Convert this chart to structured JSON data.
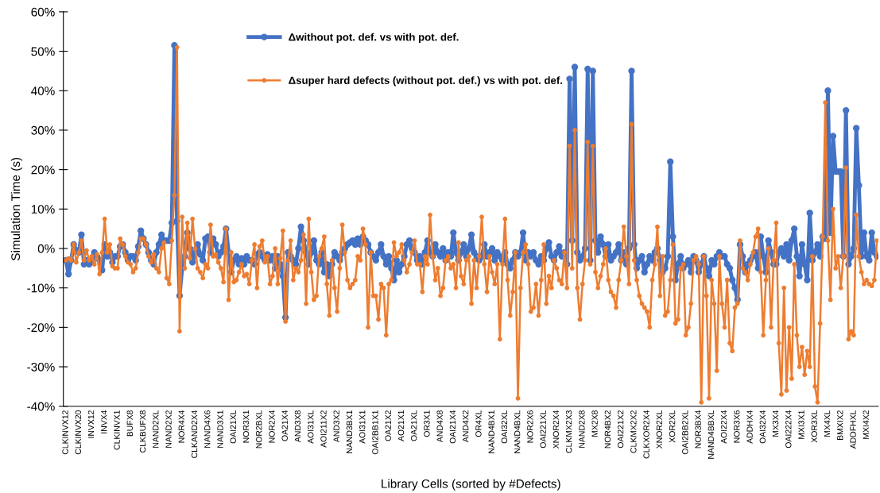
{
  "chart_data": {
    "type": "line",
    "xlabel": "Library Cells (sorted by #Defects)",
    "ylabel": "Simulation Time (s)",
    "categories": [
      "CLKINVX12",
      null,
      null,
      null,
      null,
      "CLKINVX20",
      null,
      null,
      null,
      null,
      "INVX12",
      null,
      null,
      null,
      null,
      "INVX4",
      null,
      null,
      null,
      null,
      "CLKINVX1",
      null,
      null,
      null,
      null,
      "BUFX8",
      null,
      null,
      null,
      null,
      "CLKBUFX8",
      null,
      null,
      null,
      null,
      "NAND2XL",
      null,
      null,
      null,
      null,
      "NAND2X2",
      null,
      null,
      null,
      null,
      "NOR4X4",
      null,
      null,
      null,
      null,
      "CLKAND2X4",
      null,
      null,
      null,
      null,
      "NAND4X6",
      null,
      null,
      null,
      null,
      "NAND3X1",
      null,
      null,
      null,
      null,
      "OAI21XL",
      null,
      null,
      null,
      null,
      "NOR3X1",
      null,
      null,
      null,
      null,
      "NOR2BXL",
      null,
      null,
      null,
      null,
      "NOR2X4",
      null,
      null,
      null,
      null,
      "OA21X4",
      null,
      null,
      null,
      null,
      "AND3X8",
      null,
      null,
      null,
      null,
      "AOI31XL",
      null,
      null,
      null,
      null,
      "AOI211X2",
      null,
      null,
      null,
      null,
      "AND3X2",
      null,
      null,
      null,
      null,
      "NAND3BX1",
      null,
      null,
      null,
      null,
      "AOI31X1",
      null,
      null,
      null,
      null,
      "OAI2BB1X1",
      null,
      null,
      null,
      null,
      "OA21X2",
      null,
      null,
      null,
      null,
      "AO21X1",
      null,
      null,
      null,
      null,
      "OA21XL",
      null,
      null,
      null,
      null,
      "OR3X1",
      null,
      null,
      null,
      null,
      "AND4X8",
      null,
      null,
      null,
      null,
      "OAI21X4",
      null,
      null,
      null,
      null,
      "AND4X2",
      null,
      null,
      null,
      null,
      "OR4XL",
      null,
      null,
      null,
      null,
      "NAND4BX1",
      null,
      null,
      null,
      null,
      "OAI32XL",
      null,
      null,
      null,
      null,
      "NAND4BXL",
      null,
      null,
      null,
      null,
      "NOR2X6",
      null,
      null,
      null,
      null,
      "OAI221XL",
      null,
      null,
      null,
      null,
      "XNOR2X4",
      null,
      null,
      null,
      null,
      "CLKMX2X3",
      null,
      null,
      null,
      null,
      "NAND2X8",
      null,
      null,
      null,
      null,
      "MX2X8",
      null,
      null,
      null,
      null,
      "NOR4BX2",
      null,
      null,
      null,
      null,
      "OAI221X2",
      null,
      null,
      null,
      null,
      "CLKMX2X2",
      null,
      null,
      null,
      null,
      "CLKXOR2X4",
      null,
      null,
      null,
      null,
      "XNOR2XL",
      null,
      null,
      null,
      null,
      "XOR2XL",
      null,
      null,
      null,
      null,
      "OAI2BB2XL",
      null,
      null,
      null,
      null,
      "NOR3BX4",
      null,
      null,
      null,
      null,
      "NAND4BBXL",
      null,
      null,
      null,
      null,
      "AOI22X4",
      null,
      null,
      null,
      null,
      "NOR3X6",
      null,
      null,
      null,
      null,
      "ADDHX4",
      null,
      null,
      null,
      null,
      "OAI32X4",
      null,
      null,
      null,
      null,
      "MX3X4",
      null,
      null,
      null,
      null,
      "OAI222X4",
      null,
      null,
      null,
      null,
      "MXI3X1",
      null,
      null,
      null,
      null,
      "XOR3XL",
      null,
      null,
      null,
      null,
      "MX4XL",
      null,
      null,
      null,
      null,
      "BMXIX2",
      null,
      null,
      null,
      null,
      "ADDFHXL",
      null,
      null,
      null,
      null,
      "MXI4X2",
      null,
      null,
      null,
      null
    ],
    "series": [
      {
        "name": "Δwithout pot. def. vs with pot. def.",
        "color": "#4472c4",
        "values": [
          -3,
          -6.5,
          -3,
          1,
          -0.5,
          -1,
          3.5,
          -4,
          -3,
          -4,
          -3,
          -1,
          -2,
          -3,
          -5.5,
          1,
          -2,
          -1,
          -3.5,
          -2,
          -2,
          0.5,
          1,
          -1,
          -3,
          -2,
          -2,
          -3,
          0.5,
          4.5,
          2.5,
          1,
          -1,
          -3,
          -4,
          -1,
          1,
          3.5,
          2,
          2,
          2,
          6.5,
          51.5,
          7,
          -12,
          -5,
          -2,
          4,
          0,
          -3.5,
          -1,
          1,
          -1.5,
          -3,
          2.5,
          3,
          -1,
          2.5,
          1,
          -2,
          -1,
          0.5,
          5,
          -1,
          -6,
          -3,
          -2,
          -4,
          -2.5,
          -4,
          -2,
          -3,
          -3,
          -4,
          -1.5,
          -1,
          -2,
          -3,
          -1.5,
          -3,
          -2,
          -5,
          -2,
          -4,
          -7,
          -17.5,
          -1,
          -2,
          -3,
          -4,
          0,
          5.5,
          2,
          -1,
          -4,
          -1,
          2,
          -3,
          -4,
          -1,
          -6,
          -4,
          -7,
          -4,
          -1,
          -2,
          -3,
          -1,
          0,
          1,
          1.5,
          2,
          1,
          2.5,
          1,
          3,
          2,
          1,
          -1,
          -2,
          -3,
          -1,
          1,
          -2,
          -4,
          -2,
          -5,
          -8,
          -3,
          -6,
          -4,
          -2,
          1,
          2,
          0,
          -1,
          -3,
          -2,
          -4,
          -1,
          2,
          -1,
          -2,
          1,
          -1,
          -2,
          0,
          -3,
          -1,
          -2,
          4,
          -1,
          -3,
          -1,
          1,
          -2,
          0,
          3.5,
          -1,
          -2,
          -3,
          -2,
          1,
          -2,
          -1,
          0,
          -3,
          -1,
          -2,
          -3,
          -1,
          -4,
          -5,
          -3,
          -1,
          -2,
          -1,
          4,
          -3,
          -1,
          -2,
          -1,
          -3,
          -4,
          -2,
          -3,
          0,
          1.5,
          -2,
          -3,
          -1,
          0.5,
          -2,
          -1,
          -4,
          43,
          2,
          46,
          -1,
          -3,
          -2,
          0,
          45.5,
          -3,
          45,
          2,
          -1,
          3,
          1,
          -2,
          1,
          -3,
          -2,
          -1,
          1,
          -3,
          -1,
          -4,
          0,
          45,
          1,
          -5,
          -3,
          -2,
          -6,
          -4,
          -2,
          -3,
          -1,
          0,
          -3,
          -6,
          -5,
          -2,
          22,
          3,
          -8,
          -4,
          -2,
          -5,
          -4,
          -3,
          -6,
          -2,
          -3,
          -6,
          -4,
          -2,
          -5,
          -7,
          -3,
          -4,
          -2,
          -1,
          -2,
          -2,
          -4,
          -5,
          -8,
          -10,
          -13,
          1,
          -2,
          -6,
          -4,
          -3,
          -2,
          -1,
          -5,
          3,
          -2,
          -6,
          2,
          -1,
          -4,
          -4,
          -1,
          0,
          -2,
          1,
          -3,
          2,
          5,
          -2,
          -7,
          1,
          -4,
          -8,
          9,
          -3,
          -1,
          1,
          -2,
          3,
          2.5,
          40,
          4,
          28.5,
          19.5,
          19.5,
          19.5,
          -2,
          35,
          -4,
          -2,
          0,
          30.5,
          16,
          -2,
          4,
          -2,
          -3,
          4,
          -1,
          -2
        ]
      },
      {
        "name": "Δsuper hard defects (without pot. def.) vs with pot. def.",
        "color": "#ed7d31",
        "values": [
          -3,
          -2.5,
          -3,
          1,
          -3.5,
          -1,
          2,
          -3,
          -0.5,
          -3,
          -2,
          -4,
          -1.5,
          -6.5,
          -1,
          7.5,
          -1,
          1,
          -4.5,
          -5,
          -5,
          2.5,
          1,
          -2,
          -3.5,
          -4,
          -6,
          -5,
          -1,
          2.5,
          2.5,
          1,
          -2,
          -3.5,
          -1.5,
          -5,
          -6,
          0,
          1.5,
          -7.5,
          -9,
          2,
          13.5,
          51,
          -21,
          8,
          -5,
          6.5,
          -2.5,
          7.5,
          0,
          -5,
          -6,
          -7.5,
          -4,
          -5,
          6,
          -2,
          -1.5,
          -3.5,
          -5,
          -8.5,
          5,
          -13,
          -1,
          -8.5,
          -8,
          -6,
          -4,
          -7,
          -6.5,
          -9,
          -3,
          1,
          -10,
          0.5,
          2,
          -3.5,
          -2,
          -9,
          -7,
          0,
          -9,
          -2.5,
          4.5,
          -18.5,
          -3,
          2,
          -8,
          -5,
          -6,
          -3,
          3.5,
          -14,
          7.5,
          -6,
          -13,
          -12,
          -2,
          0,
          3,
          -9,
          -17,
          -3,
          -10,
          -16,
          -5,
          6,
          -1,
          -8,
          -10,
          -9,
          -8,
          -2,
          -3,
          5,
          1,
          -20,
          -1,
          -12,
          -12,
          -18,
          -9,
          -10,
          -22,
          -9,
          -8,
          1.5,
          -2,
          -1,
          1,
          -3,
          -6,
          -4,
          -1,
          2,
          -4,
          -4,
          -11,
          -2,
          -4,
          8.5,
          -2,
          -8,
          -5,
          -12,
          -10,
          -3,
          -2,
          -5,
          -4,
          -10,
          1.5,
          -7,
          -9,
          -3,
          -2,
          -14,
          -3,
          -10,
          -2,
          8,
          -4,
          -11,
          -2,
          -6,
          -9,
          -4,
          -23,
          -4,
          7.5,
          -8,
          -17,
          -11,
          -1,
          -38,
          -10,
          -1,
          1,
          -4,
          -16,
          -15,
          -9,
          -17,
          -8,
          1,
          -14,
          -7,
          -10,
          -3,
          -5,
          -8,
          -9,
          -1,
          -10,
          26,
          -5,
          30,
          -10,
          -18,
          -9,
          -3,
          27,
          -4,
          26,
          -6,
          -10,
          -7,
          -4,
          0,
          -8,
          -11,
          -12,
          -15,
          -8,
          -3,
          5.5,
          -2,
          -9,
          31.5,
          -3,
          -8,
          -12,
          -14,
          -15,
          -16,
          -20,
          -8,
          -4,
          5.5,
          -12,
          -2,
          -17,
          -16,
          -8,
          1,
          -19,
          -18,
          -5,
          -4,
          -22,
          -20,
          -14,
          -3,
          -2,
          -4,
          -39,
          -2,
          -12,
          -38,
          -8,
          -14,
          -31,
          -2,
          -14,
          -20,
          -8,
          -24,
          -26,
          -15,
          -14,
          2,
          -5,
          -6,
          -8,
          -4,
          -1,
          3,
          5,
          -6,
          -22,
          -8,
          0,
          -20,
          -3,
          6.5,
          -24,
          -37,
          -10,
          -36,
          -20,
          -33,
          -4,
          -22,
          -30,
          -25,
          -32,
          -26,
          -30,
          -2,
          -35,
          -39,
          -19,
          3,
          37,
          2,
          -13,
          10,
          -5,
          -2,
          -10,
          -2,
          20.5,
          -23,
          -21,
          -22,
          8.5,
          -2,
          -6,
          -9,
          -8,
          -9,
          -9.5,
          -8,
          2
        ]
      }
    ],
    "ylim": [
      -40,
      60
    ],
    "yticks": [
      {
        "value": -40,
        "label": "-40%"
      },
      {
        "value": -30,
        "label": "-30%"
      },
      {
        "value": -20,
        "label": "-20%"
      },
      {
        "value": -10,
        "label": "-10%"
      },
      {
        "value": 0,
        "label": "0%"
      },
      {
        "value": 10,
        "label": "10%"
      },
      {
        "value": 20,
        "label": "20%"
      },
      {
        "value": 30,
        "label": "30%"
      },
      {
        "value": 40,
        "label": "40%"
      },
      {
        "value": 50,
        "label": "50%"
      },
      {
        "value": 60,
        "label": "60%"
      }
    ],
    "grid": false,
    "legend": "top",
    "marker": "circle",
    "line_style": "solid"
  }
}
